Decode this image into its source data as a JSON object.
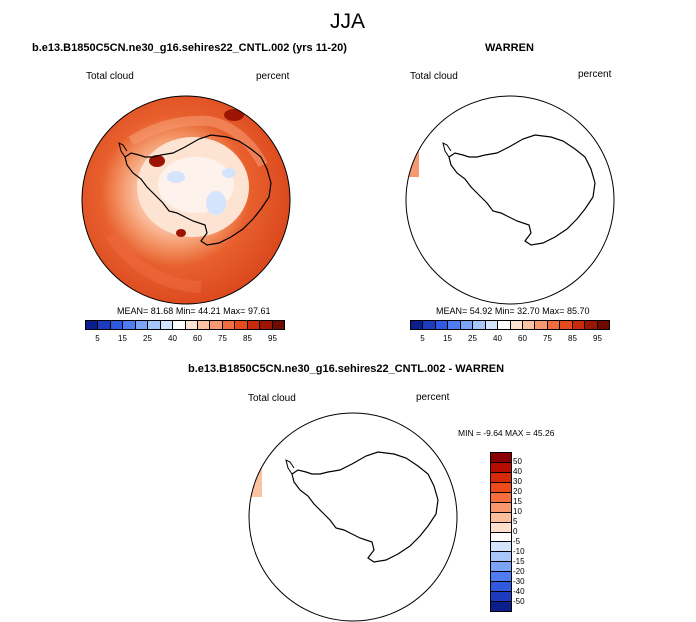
{
  "figure": {
    "season_title": "JJA",
    "panel_model": {
      "title": "b.e13.B1850C5CN.ne30_g16.sehires22_CNTL.002 (yrs 11-20)",
      "variable": "Total cloud",
      "units": "percent",
      "stats": {
        "mean_label": "MEAN=",
        "mean": "81.68",
        "min_label": "Min=",
        "min": "44.21",
        "max_label": "Max=",
        "max": "97.61"
      }
    },
    "panel_obs": {
      "title": "WARREN",
      "variable": "Total cloud",
      "units": "percent",
      "stats": {
        "mean_label": "MEAN=",
        "mean": "54.92",
        "min_label": "Min=",
        "min": "32.70",
        "max_label": "Max=",
        "max": "85.70"
      }
    },
    "panel_diff": {
      "title": "b.e13.B1850C5CN.ne30_g16.sehires22_CNTL.002 - WARREN",
      "variable": "Total cloud",
      "units": "percent",
      "stats": {
        "min_label": "MIN =",
        "min": "-9.64",
        "max_label": "MAX =",
        "max": "45.26"
      }
    },
    "colorbar_abs": {
      "tick_labels": [
        "5",
        "15",
        "25",
        "40",
        "60",
        "75",
        "85",
        "95"
      ],
      "colors": [
        "#0a1f8c",
        "#1c3bbf",
        "#2f5ae0",
        "#4f7cf0",
        "#7aa4f7",
        "#a9c6fb",
        "#d5e4fd",
        "#ffffff",
        "#fde4d2",
        "#fbc2a4",
        "#f7996f",
        "#f06c41",
        "#e64a1f",
        "#c92a0c",
        "#9c1404",
        "#6e0a00"
      ]
    },
    "colorbar_diff": {
      "tick_labels": [
        "50",
        "40",
        "30",
        "20",
        "15",
        "10",
        "5",
        "0",
        "-5",
        "-10",
        "-15",
        "-20",
        "-30",
        "-40",
        "-50"
      ],
      "colors": [
        "#8a0000",
        "#b80b02",
        "#d8280a",
        "#ee4a1a",
        "#f66e3e",
        "#f9986c",
        "#fbbd9a",
        "#fde0cc",
        "#ffffff",
        "#d5e4fd",
        "#a9c6fb",
        "#7aa4f7",
        "#4f7cf0",
        "#2f5ae0",
        "#1c3bbf",
        "#0a1f8c"
      ]
    }
  }
}
